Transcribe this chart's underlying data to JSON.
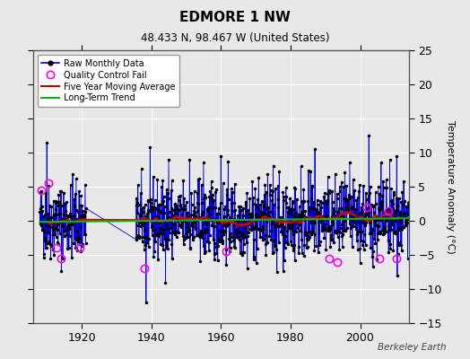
{
  "title": "EDMORE 1 NW",
  "subtitle": "48.433 N, 98.467 W (United States)",
  "ylabel": "Temperature Anomaly (°C)",
  "credit": "Berkeley Earth",
  "ylim": [
    -15,
    25
  ],
  "yticks": [
    -15,
    -10,
    -5,
    0,
    5,
    10,
    15,
    20,
    25
  ],
  "xlim": [
    1906,
    2014
  ],
  "xticks": [
    1920,
    1940,
    1960,
    1980,
    2000
  ],
  "bg_color": "#e8e8e8",
  "plot_bg_color": "#e8e8e8",
  "grid_color": "#ffffff",
  "raw_line_color": "#0000dd",
  "raw_dot_color": "#000000",
  "qc_fail_color": "#ff00ff",
  "moving_avg_color": "#cc0000",
  "trend_color": "#00bb00",
  "seed": 42,
  "start_year": 1908,
  "end_year": 2013,
  "gap_start": 1921,
  "gap_end": 1935
}
